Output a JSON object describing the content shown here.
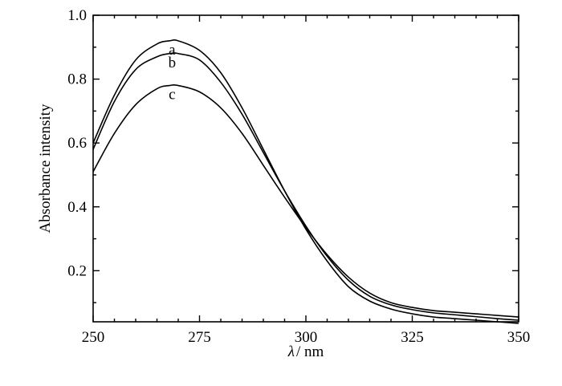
{
  "chart_data": {
    "type": "line",
    "xlabel_symbol": "λ",
    "xlabel_unit": "/ nm",
    "ylabel": "Absorbance intensity",
    "xlim": [
      250,
      350
    ],
    "ylim": [
      0.04,
      1.0
    ],
    "x_ticks": [
      250,
      275,
      300,
      325,
      350
    ],
    "x_tick_labels": [
      "250",
      "275",
      "300",
      "325",
      "350"
    ],
    "y_ticks": [
      0.2,
      0.4,
      0.6,
      0.8,
      1.0
    ],
    "y_tick_labels": [
      "0.2",
      "0.4",
      "0.6",
      "0.8",
      "1.0"
    ],
    "grid": false,
    "legend": "none",
    "series": [
      {
        "label": "a",
        "x": [
          250,
          255,
          260,
          265,
          268,
          270,
          275,
          280,
          285,
          290,
          295,
          300,
          305,
          310,
          315,
          320,
          325,
          330,
          335,
          340,
          345,
          350
        ],
        "values": [
          0.6,
          0.75,
          0.86,
          0.91,
          0.92,
          0.92,
          0.89,
          0.82,
          0.71,
          0.58,
          0.45,
          0.33,
          0.23,
          0.15,
          0.105,
          0.08,
          0.065,
          0.055,
          0.05,
          0.045,
          0.04,
          0.035
        ]
      },
      {
        "label": "b",
        "x": [
          250,
          255,
          260,
          265,
          268,
          270,
          275,
          280,
          285,
          290,
          295,
          300,
          305,
          310,
          315,
          320,
          325,
          330,
          335,
          340,
          345,
          350
        ],
        "values": [
          0.58,
          0.73,
          0.83,
          0.87,
          0.88,
          0.88,
          0.86,
          0.79,
          0.69,
          0.57,
          0.45,
          0.34,
          0.245,
          0.17,
          0.12,
          0.093,
          0.078,
          0.068,
          0.062,
          0.056,
          0.05,
          0.045
        ]
      },
      {
        "label": "c",
        "x": [
          250,
          255,
          260,
          265,
          268,
          270,
          275,
          280,
          285,
          290,
          295,
          300,
          305,
          310,
          315,
          320,
          325,
          330,
          335,
          340,
          345,
          350
        ],
        "values": [
          0.51,
          0.63,
          0.72,
          0.77,
          0.78,
          0.78,
          0.76,
          0.71,
          0.63,
          0.53,
          0.43,
          0.335,
          0.25,
          0.18,
          0.13,
          0.1,
          0.085,
          0.075,
          0.07,
          0.065,
          0.06,
          0.055
        ]
      }
    ]
  }
}
